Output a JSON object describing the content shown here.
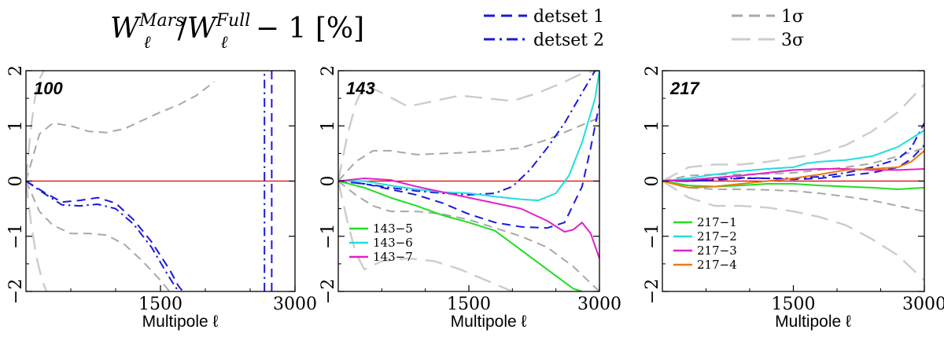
{
  "figure": {
    "title": "W_ℓ^Mars / W_ℓ^Full − 1  [%]",
    "title_parts": {
      "base": "W",
      "sub": "ℓ",
      "sup1": "Mars",
      "sup2": "Full",
      "rest": " − 1  [%]"
    },
    "legend_top": [
      {
        "label": "detset 1",
        "style": "dashed",
        "color": "#1a1adc"
      },
      {
        "label": "detset 2",
        "style": "dashdot",
        "color": "#1a1adc"
      },
      {
        "label": "1σ",
        "style": "dashed",
        "color": "#a8a8a8"
      },
      {
        "label": "3σ",
        "style": "longdash",
        "color": "#cccccc"
      }
    ]
  },
  "chart_data": [
    {
      "type": "line",
      "panel_label": "100",
      "xlabel": "Multipole ℓ",
      "ylabel": "",
      "xlim": [
        0,
        3000
      ],
      "ylim": [
        -2,
        2
      ],
      "xticks": [
        1500,
        3000
      ],
      "xtick_labels": [
        "1500",
        "3000"
      ],
      "yticks": [
        -2,
        -1,
        0,
        1,
        2
      ],
      "ytick_labels": [
        "−2",
        "−1",
        "0",
        "1",
        "2"
      ],
      "zero_line_color": "#e00000",
      "legend": [],
      "series": [
        {
          "name": "1σ upper",
          "style": "dashed",
          "color": "#a8a8a8",
          "x": [
            0,
            150,
            300,
            500,
            700,
            900,
            1100,
            1300,
            1500,
            1700,
            1900,
            2100
          ],
          "y": [
            0,
            0.85,
            1.05,
            1.0,
            0.9,
            0.88,
            0.95,
            1.1,
            1.25,
            1.38,
            1.55,
            1.8
          ]
        },
        {
          "name": "1σ lower",
          "style": "dashed",
          "color": "#a8a8a8",
          "x": [
            0,
            150,
            300,
            500,
            700,
            900,
            1100,
            1300,
            1500,
            1600
          ],
          "y": [
            0,
            -0.55,
            -0.8,
            -0.95,
            -0.95,
            -0.98,
            -1.15,
            -1.45,
            -1.8,
            -2.0
          ]
        },
        {
          "name": "3σ upper",
          "style": "longdash",
          "color": "#cccccc",
          "x": [
            0,
            50,
            100,
            150,
            200
          ],
          "y": [
            0,
            0.9,
            1.5,
            1.85,
            2.0
          ]
        },
        {
          "name": "3σ lower",
          "style": "longdash",
          "color": "#cccccc",
          "x": [
            0,
            60,
            120,
            180,
            230
          ],
          "y": [
            0,
            -0.8,
            -1.4,
            -1.8,
            -2.0
          ]
        },
        {
          "name": "detset 1",
          "style": "dashed",
          "color": "#1a1adc",
          "x": [
            0,
            200,
            400,
            600,
            800,
            1000,
            1200,
            1400,
            1600,
            1700,
            1750
          ],
          "y": [
            0,
            -0.2,
            -0.38,
            -0.35,
            -0.3,
            -0.4,
            -0.7,
            -1.1,
            -1.6,
            -1.9,
            -2.0
          ]
        },
        {
          "name": "detset 2",
          "style": "dashdot",
          "color": "#1a1adc",
          "x": [
            0,
            200,
            400,
            600,
            800,
            1000,
            1200,
            1400,
            1600,
            1700
          ],
          "y": [
            0,
            -0.22,
            -0.43,
            -0.45,
            -0.42,
            -0.5,
            -0.78,
            -1.2,
            -1.75,
            -2.0
          ]
        },
        {
          "name": "detset 1 spike",
          "style": "dashed",
          "color": "#1a1adc",
          "x": [
            2740,
            2740
          ],
          "y": [
            -2,
            2
          ]
        },
        {
          "name": "detset 2 spike",
          "style": "dashdot",
          "color": "#1a1adc",
          "x": [
            2660,
            2660
          ],
          "y": [
            -2,
            2
          ]
        }
      ]
    },
    {
      "type": "line",
      "panel_label": "143",
      "xlabel": "Multipole ℓ",
      "ylabel": "",
      "xlim": [
        0,
        3000
      ],
      "ylim": [
        -2,
        2
      ],
      "xticks": [
        1500,
        3000
      ],
      "xtick_labels": [
        "1500",
        "3000"
      ],
      "yticks": [
        -2,
        -1,
        0,
        1,
        2
      ],
      "ytick_labels": [
        "−2",
        "−1",
        "0",
        "1",
        "2"
      ],
      "zero_line_color": "#e00000",
      "legend": [
        {
          "label": "143−5",
          "color": "#22dd22"
        },
        {
          "label": "143−6",
          "color": "#22dddd"
        },
        {
          "label": "143−7",
          "color": "#e022c8"
        }
      ],
      "series": [
        {
          "name": "3σ upper",
          "style": "longdash",
          "color": "#cccccc",
          "x": [
            0,
            100,
            200,
            300,
            500,
            800,
            1100,
            1400,
            1700,
            2000,
            2300,
            2600,
            2800,
            3000
          ],
          "y": [
            0,
            0.8,
            1.4,
            1.75,
            1.6,
            1.35,
            1.45,
            1.55,
            1.5,
            1.45,
            1.6,
            1.8,
            1.95,
            2.0
          ]
        },
        {
          "name": "3σ lower",
          "style": "longdash",
          "color": "#cccccc",
          "x": [
            0,
            100,
            200,
            300,
            500,
            800,
            1100,
            1400,
            1700,
            2000
          ],
          "y": [
            0,
            -0.7,
            -1.3,
            -1.6,
            -1.45,
            -1.4,
            -1.45,
            -1.6,
            -1.8,
            -2.0
          ]
        },
        {
          "name": "1σ upper",
          "style": "dashed",
          "color": "#a8a8a8",
          "x": [
            0,
            200,
            400,
            600,
            900,
            1200,
            1500,
            1800,
            2100,
            2400,
            2700,
            3000
          ],
          "y": [
            0,
            0.35,
            0.55,
            0.55,
            0.48,
            0.5,
            0.52,
            0.55,
            0.6,
            0.75,
            0.95,
            1.15
          ]
        },
        {
          "name": "1σ lower",
          "style": "dashed",
          "color": "#a8a8a8",
          "x": [
            0,
            200,
            400,
            600,
            900,
            1200,
            1500,
            1800,
            2100,
            2400,
            2700,
            3000
          ],
          "y": [
            0,
            -0.25,
            -0.45,
            -0.55,
            -0.55,
            -0.6,
            -0.7,
            -0.85,
            -1.0,
            -1.2,
            -1.55,
            -2.0
          ]
        },
        {
          "name": "detset 1",
          "style": "dashed",
          "color": "#1a1adc",
          "x": [
            0,
            300,
            600,
            900,
            1200,
            1500,
            1800,
            2100,
            2400,
            2600,
            2800,
            2900,
            3000
          ],
          "y": [
            0,
            -0.05,
            -0.15,
            -0.25,
            -0.4,
            -0.6,
            -0.75,
            -0.83,
            -0.85,
            -0.75,
            -0.1,
            0.6,
            1.4
          ]
        },
        {
          "name": "detset 2",
          "style": "dashdot",
          "color": "#1a1adc",
          "x": [
            0,
            300,
            600,
            900,
            1200,
            1500,
            1800,
            2000,
            2200,
            2400,
            2600,
            2800,
            2950
          ],
          "y": [
            0,
            -0.05,
            -0.12,
            -0.18,
            -0.22,
            -0.25,
            -0.22,
            -0.1,
            0.2,
            0.6,
            1.05,
            1.6,
            2.0
          ]
        },
        {
          "name": "143−5",
          "style": "solid",
          "color": "#22dd22",
          "x": [
            0,
            300,
            600,
            900,
            1200,
            1500,
            1800,
            2100,
            2400,
            2700,
            2800
          ],
          "y": [
            0,
            -0.12,
            -0.3,
            -0.45,
            -0.62,
            -0.75,
            -0.9,
            -1.25,
            -1.6,
            -1.95,
            -2.0
          ]
        },
        {
          "name": "143−6",
          "style": "solid",
          "color": "#22dddd",
          "x": [
            0,
            300,
            600,
            900,
            1200,
            1500,
            1800,
            2100,
            2300,
            2500,
            2650,
            2800,
            2950,
            3000
          ],
          "y": [
            0,
            0.0,
            -0.08,
            -0.15,
            -0.2,
            -0.22,
            -0.28,
            -0.33,
            -0.35,
            -0.22,
            0.1,
            0.7,
            1.5,
            2.0
          ]
        },
        {
          "name": "143−7",
          "style": "solid",
          "color": "#e022c8",
          "x": [
            0,
            300,
            600,
            900,
            1200,
            1500,
            1800,
            2100,
            2400,
            2600,
            2700,
            2800,
            2900,
            3000
          ],
          "y": [
            0,
            0.05,
            0.02,
            -0.1,
            -0.2,
            -0.3,
            -0.4,
            -0.5,
            -0.72,
            -0.92,
            -0.88,
            -0.75,
            -0.95,
            -1.4
          ]
        }
      ]
    },
    {
      "type": "line",
      "panel_label": "217",
      "xlabel": "Multipole ℓ",
      "ylabel": "",
      "xlim": [
        0,
        3000
      ],
      "ylim": [
        -2,
        2
      ],
      "xticks": [
        1500,
        3000
      ],
      "xtick_labels": [
        "1500",
        "3000"
      ],
      "yticks": [
        -2,
        -1,
        0,
        1,
        2
      ],
      "ytick_labels": [
        "−2",
        "−1",
        "0",
        "1",
        "2"
      ],
      "zero_line_color": "#e00000",
      "legend": [
        {
          "label": "217−1",
          "color": "#22dd22"
        },
        {
          "label": "217−2",
          "color": "#22dddd"
        },
        {
          "label": "217−3",
          "color": "#e022c8"
        },
        {
          "label": "217−4",
          "color": "#ee7711"
        }
      ],
      "series": [
        {
          "name": "3σ upper",
          "style": "longdash",
          "color": "#cccccc",
          "x": [
            0,
            300,
            600,
            900,
            1200,
            1500,
            1800,
            2100,
            2400,
            2700,
            3000
          ],
          "y": [
            0,
            0.25,
            0.3,
            0.3,
            0.35,
            0.42,
            0.5,
            0.65,
            0.9,
            1.25,
            1.75
          ]
        },
        {
          "name": "3σ lower",
          "style": "longdash",
          "color": "#cccccc",
          "x": [
            0,
            300,
            600,
            900,
            1200,
            1500,
            1800,
            2100,
            2400,
            2700,
            3000
          ],
          "y": [
            0,
            -0.3,
            -0.45,
            -0.45,
            -0.48,
            -0.55,
            -0.65,
            -0.8,
            -1.05,
            -1.35,
            -1.8
          ]
        },
        {
          "name": "1σ upper",
          "style": "dashed",
          "color": "#a8a8a8",
          "x": [
            0,
            300,
            600,
            900,
            1200,
            1500,
            1800,
            2100,
            2400,
            2700,
            3000
          ],
          "y": [
            0,
            0.1,
            0.12,
            0.12,
            0.13,
            0.15,
            0.2,
            0.25,
            0.32,
            0.45,
            0.6
          ]
        },
        {
          "name": "1σ lower",
          "style": "dashed",
          "color": "#a8a8a8",
          "x": [
            0,
            300,
            600,
            900,
            1200,
            1500,
            1800,
            2100,
            2400,
            2700,
            3000
          ],
          "y": [
            0,
            -0.12,
            -0.15,
            -0.15,
            -0.16,
            -0.18,
            -0.22,
            -0.28,
            -0.35,
            -0.45,
            -0.55
          ]
        },
        {
          "name": "detset 1",
          "style": "dashed",
          "color": "#1a1adc",
          "x": [
            0,
            300,
            600,
            900,
            1200,
            1500,
            1800,
            2100,
            2400,
            2700,
            2850,
            3000
          ],
          "y": [
            0,
            0.0,
            0.02,
            0.05,
            0.05,
            0.03,
            0.05,
            0.1,
            0.15,
            0.25,
            0.4,
            0.65
          ]
        },
        {
          "name": "detset 2",
          "style": "dashdot",
          "color": "#1a1adc",
          "x": [
            0,
            300,
            600,
            900,
            1200,
            1500,
            1800,
            2100,
            2400,
            2700,
            2850,
            3000
          ],
          "y": [
            0,
            0.0,
            0.03,
            0.06,
            0.05,
            0.05,
            0.08,
            0.15,
            0.25,
            0.4,
            0.6,
            1.05
          ]
        },
        {
          "name": "217−1",
          "style": "solid",
          "color": "#22dd22",
          "x": [
            0,
            300,
            600,
            900,
            1200,
            1500,
            1800,
            2100,
            2400,
            2700,
            3000
          ],
          "y": [
            0,
            -0.08,
            -0.1,
            -0.08,
            -0.05,
            -0.05,
            -0.08,
            -0.1,
            -0.12,
            -0.15,
            -0.12
          ]
        },
        {
          "name": "217−2",
          "style": "solid",
          "color": "#22dddd",
          "x": [
            0,
            300,
            600,
            900,
            1200,
            1500,
            1650,
            1800,
            2100,
            2400,
            2700,
            2900,
            3000
          ],
          "y": [
            0,
            0.05,
            0.12,
            0.18,
            0.22,
            0.25,
            0.32,
            0.35,
            0.38,
            0.45,
            0.62,
            0.82,
            0.92
          ]
        },
        {
          "name": "217−3",
          "style": "solid",
          "color": "#e022c8",
          "x": [
            0,
            300,
            600,
            900,
            1200,
            1500,
            1800,
            2100,
            2400,
            2700,
            3000
          ],
          "y": [
            0,
            0.02,
            0.06,
            0.1,
            0.15,
            0.2,
            0.22,
            0.22,
            0.2,
            0.2,
            0.22
          ]
        },
        {
          "name": "217−4",
          "style": "solid",
          "color": "#ee7711",
          "x": [
            0,
            300,
            600,
            900,
            1200,
            1500,
            1800,
            2100,
            2400,
            2700,
            2850,
            3000
          ],
          "y": [
            0,
            -0.12,
            -0.1,
            -0.05,
            0.0,
            0.05,
            0.12,
            0.2,
            0.22,
            0.25,
            0.35,
            0.55
          ]
        }
      ]
    }
  ]
}
